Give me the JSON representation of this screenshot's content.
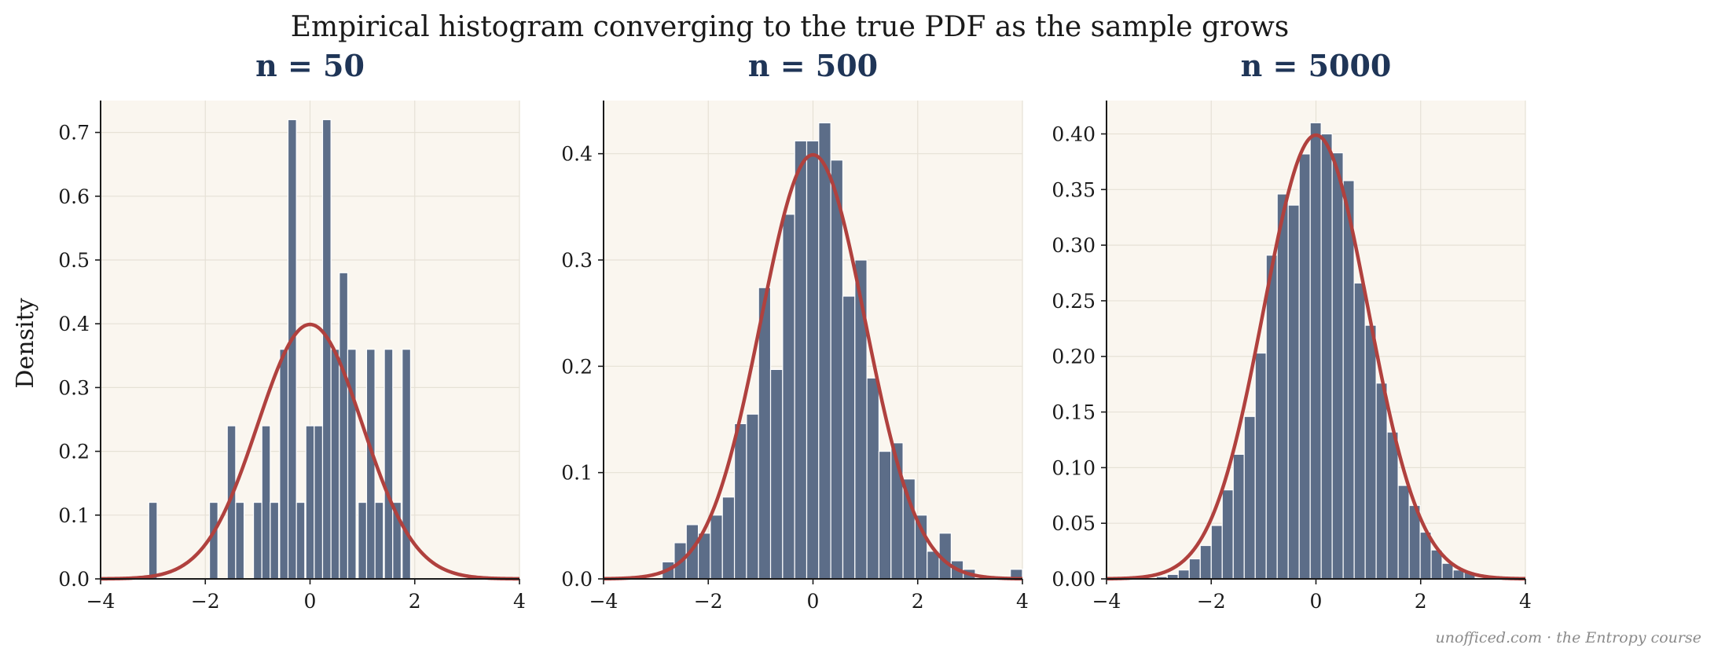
{
  "suptitle": "Empirical histogram converging to the true PDF as the sample grows",
  "ylabel": "Density",
  "footer": "unofficed.com · the Entropy course",
  "colors": {
    "panel_bg": "#faf6ef",
    "bar_fill": "#5c6d88",
    "bar_edge": "#ffffff",
    "pdf_line": "#b0413e",
    "title": "#1f3557",
    "grid": "#e6e1d6",
    "axis": "#1a1a1a"
  },
  "chart_data": [
    {
      "type": "bar",
      "title": "n = 50",
      "xlim": [
        -4,
        4
      ],
      "ylim": [
        0,
        0.75
      ],
      "xticks": [
        -4,
        -2,
        0,
        2,
        4
      ],
      "xtick_labels": [
        "−4",
        "−2",
        "0",
        "2",
        "4"
      ],
      "yticks": [
        0,
        0.1,
        0.2,
        0.3,
        0.4,
        0.5,
        0.6,
        0.7
      ],
      "ytick_labels": [
        "0.0",
        "0.1",
        "0.2",
        "0.3",
        "0.4",
        "0.5",
        "0.6",
        "0.7"
      ],
      "grid": true,
      "bins": [
        {
          "x0": -3.08,
          "x1": -2.92,
          "density": 0.12
        },
        {
          "x0": -1.92,
          "x1": -1.76,
          "density": 0.12
        },
        {
          "x0": -1.58,
          "x1": -1.42,
          "density": 0.24
        },
        {
          "x0": -1.42,
          "x1": -1.26,
          "density": 0.12
        },
        {
          "x0": -1.08,
          "x1": -0.92,
          "density": 0.12
        },
        {
          "x0": -0.92,
          "x1": -0.76,
          "density": 0.24
        },
        {
          "x0": -0.76,
          "x1": -0.6,
          "density": 0.12
        },
        {
          "x0": -0.58,
          "x1": -0.42,
          "density": 0.36
        },
        {
          "x0": -0.42,
          "x1": -0.26,
          "density": 0.72
        },
        {
          "x0": -0.26,
          "x1": -0.1,
          "density": 0.12
        },
        {
          "x0": -0.08,
          "x1": 0.08,
          "density": 0.24
        },
        {
          "x0": 0.08,
          "x1": 0.24,
          "density": 0.24
        },
        {
          "x0": 0.24,
          "x1": 0.4,
          "density": 0.72
        },
        {
          "x0": 0.4,
          "x1": 0.56,
          "density": 0.36
        },
        {
          "x0": 0.56,
          "x1": 0.72,
          "density": 0.48
        },
        {
          "x0": 0.72,
          "x1": 0.88,
          "density": 0.36
        },
        {
          "x0": 0.92,
          "x1": 1.08,
          "density": 0.12
        },
        {
          "x0": 1.08,
          "x1": 1.24,
          "density": 0.36
        },
        {
          "x0": 1.24,
          "x1": 1.4,
          "density": 0.12
        },
        {
          "x0": 1.42,
          "x1": 1.58,
          "density": 0.36
        },
        {
          "x0": 1.58,
          "x1": 1.74,
          "density": 0.12
        },
        {
          "x0": 1.76,
          "x1": 1.92,
          "density": 0.36
        }
      ]
    },
    {
      "type": "bar",
      "title": "n = 500",
      "xlim": [
        -4,
        4
      ],
      "ylim": [
        0,
        0.45
      ],
      "xticks": [
        -4,
        -2,
        0,
        2,
        4
      ],
      "xtick_labels": [
        "−4",
        "−2",
        "0",
        "2",
        "4"
      ],
      "yticks": [
        0,
        0.1,
        0.2,
        0.3,
        0.4
      ],
      "ytick_labels": [
        "0.0",
        "0.1",
        "0.2",
        "0.3",
        "0.4"
      ],
      "grid": true,
      "bins": [
        {
          "x0": -2.88,
          "x1": -2.65,
          "density": 0.016
        },
        {
          "x0": -2.65,
          "x1": -2.42,
          "density": 0.034
        },
        {
          "x0": -2.42,
          "x1": -2.19,
          "density": 0.051
        },
        {
          "x0": -2.19,
          "x1": -1.96,
          "density": 0.043
        },
        {
          "x0": -1.96,
          "x1": -1.73,
          "density": 0.06
        },
        {
          "x0": -1.73,
          "x1": -1.5,
          "density": 0.077
        },
        {
          "x0": -1.5,
          "x1": -1.27,
          "density": 0.146
        },
        {
          "x0": -1.27,
          "x1": -1.04,
          "density": 0.155
        },
        {
          "x0": -1.04,
          "x1": -0.81,
          "density": 0.274
        },
        {
          "x0": -0.81,
          "x1": -0.58,
          "density": 0.197
        },
        {
          "x0": -0.58,
          "x1": -0.35,
          "density": 0.343
        },
        {
          "x0": -0.35,
          "x1": -0.12,
          "density": 0.412
        },
        {
          "x0": -0.12,
          "x1": 0.11,
          "density": 0.412
        },
        {
          "x0": 0.11,
          "x1": 0.34,
          "density": 0.429
        },
        {
          "x0": 0.34,
          "x1": 0.57,
          "density": 0.394
        },
        {
          "x0": 0.57,
          "x1": 0.8,
          "density": 0.266
        },
        {
          "x0": 0.8,
          "x1": 1.03,
          "density": 0.3
        },
        {
          "x0": 1.03,
          "x1": 1.26,
          "density": 0.189
        },
        {
          "x0": 1.26,
          "x1": 1.49,
          "density": 0.12
        },
        {
          "x0": 1.49,
          "x1": 1.72,
          "density": 0.128
        },
        {
          "x0": 1.72,
          "x1": 1.95,
          "density": 0.094
        },
        {
          "x0": 1.95,
          "x1": 2.18,
          "density": 0.06
        },
        {
          "x0": 2.18,
          "x1": 2.41,
          "density": 0.026
        },
        {
          "x0": 2.41,
          "x1": 2.64,
          "density": 0.043
        },
        {
          "x0": 2.64,
          "x1": 2.87,
          "density": 0.017
        },
        {
          "x0": 2.87,
          "x1": 3.1,
          "density": 0.009
        },
        {
          "x0": 3.77,
          "x1": 4.0,
          "density": 0.009
        }
      ]
    },
    {
      "type": "bar",
      "title": "n = 5000",
      "xlim": [
        -4,
        4
      ],
      "ylim": [
        0,
        0.43
      ],
      "xticks": [
        -4,
        -2,
        0,
        2,
        4
      ],
      "xtick_labels": [
        "−4",
        "−2",
        "0",
        "2",
        "4"
      ],
      "yticks": [
        0,
        0.05,
        0.1,
        0.15,
        0.2,
        0.25,
        0.3,
        0.35,
        0.4
      ],
      "ytick_labels": [
        "0.00",
        "0.05",
        "0.10",
        "0.15",
        "0.20",
        "0.25",
        "0.30",
        "0.35",
        "0.40"
      ],
      "grid": true,
      "bins": [
        {
          "x0": -3.05,
          "x1": -2.84,
          "density": 0.002
        },
        {
          "x0": -2.84,
          "x1": -2.63,
          "density": 0.004
        },
        {
          "x0": -2.63,
          "x1": -2.42,
          "density": 0.008
        },
        {
          "x0": -2.42,
          "x1": -2.21,
          "density": 0.018
        },
        {
          "x0": -2.21,
          "x1": -2.0,
          "density": 0.03
        },
        {
          "x0": -2.0,
          "x1": -1.79,
          "density": 0.048
        },
        {
          "x0": -1.79,
          "x1": -1.58,
          "density": 0.08
        },
        {
          "x0": -1.58,
          "x1": -1.37,
          "density": 0.112
        },
        {
          "x0": -1.37,
          "x1": -1.16,
          "density": 0.146
        },
        {
          "x0": -1.16,
          "x1": -0.95,
          "density": 0.203
        },
        {
          "x0": -0.95,
          "x1": -0.74,
          "density": 0.291
        },
        {
          "x0": -0.74,
          "x1": -0.53,
          "density": 0.346
        },
        {
          "x0": -0.53,
          "x1": -0.32,
          "density": 0.336
        },
        {
          "x0": -0.32,
          "x1": -0.11,
          "density": 0.382
        },
        {
          "x0": -0.11,
          "x1": 0.1,
          "density": 0.41
        },
        {
          "x0": 0.1,
          "x1": 0.31,
          "density": 0.4
        },
        {
          "x0": 0.31,
          "x1": 0.52,
          "density": 0.383
        },
        {
          "x0": 0.52,
          "x1": 0.73,
          "density": 0.358
        },
        {
          "x0": 0.73,
          "x1": 0.94,
          "density": 0.266
        },
        {
          "x0": 0.94,
          "x1": 1.15,
          "density": 0.228
        },
        {
          "x0": 1.15,
          "x1": 1.36,
          "density": 0.176
        },
        {
          "x0": 1.36,
          "x1": 1.57,
          "density": 0.132
        },
        {
          "x0": 1.57,
          "x1": 1.78,
          "density": 0.084
        },
        {
          "x0": 1.78,
          "x1": 1.99,
          "density": 0.066
        },
        {
          "x0": 1.99,
          "x1": 2.2,
          "density": 0.042
        },
        {
          "x0": 2.2,
          "x1": 2.41,
          "density": 0.026
        },
        {
          "x0": 2.41,
          "x1": 2.62,
          "density": 0.014
        },
        {
          "x0": 2.62,
          "x1": 2.83,
          "density": 0.008
        },
        {
          "x0": 2.83,
          "x1": 3.04,
          "density": 0.006
        }
      ]
    }
  ],
  "true_pdf": {
    "distribution": "normal",
    "mean": 0,
    "sd": 1
  }
}
